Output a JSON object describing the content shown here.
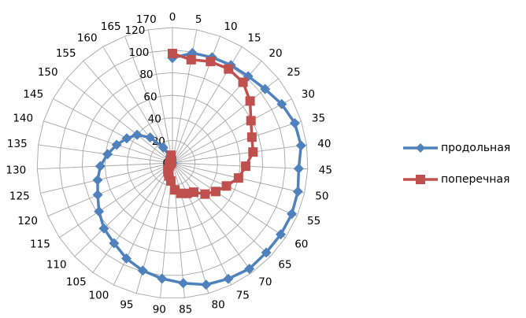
{
  "chart_data": {
    "type": "radar",
    "categories": [
      "0",
      "5",
      "10",
      "15",
      "20",
      "25",
      "30",
      "35",
      "40",
      "45",
      "50",
      "55",
      "60",
      "65",
      "70",
      "75",
      "80",
      "85",
      "90",
      "95",
      "100",
      "105",
      "110",
      "115",
      "120",
      "125",
      "130",
      "135",
      "140",
      "145",
      "150",
      "155",
      "160",
      "165",
      "170"
    ],
    "radial_ticks": [
      "0",
      "20",
      "40",
      "60",
      "80",
      "100",
      "120"
    ],
    "rmax": 120,
    "grid": true,
    "legend_position": "right",
    "series": [
      {
        "name": "продольная",
        "color": "#4F81BD",
        "marker": "diamond",
        "values": [
          93,
          99,
          100,
          101,
          102,
          105,
          110,
          114,
          115,
          112,
          114,
          115,
          115,
          115,
          116,
          114,
          112,
          107,
          103,
          99,
          94,
          88,
          84,
          78,
          72,
          68,
          64,
          58,
          52,
          46,
          40,
          30,
          16,
          6,
          0
        ]
      },
      {
        "name": "поперечная",
        "color": "#C0504D",
        "marker": "square",
        "values": [
          97,
          93,
          96,
          97,
          95,
          88,
          79,
          74,
          72,
          65,
          60,
          52,
          46,
          40,
          32,
          30,
          28,
          24,
          16,
          12,
          9,
          7,
          4,
          3,
          2,
          2,
          2,
          1,
          2,
          2,
          2,
          2,
          2,
          2,
          7
        ]
      }
    ]
  }
}
